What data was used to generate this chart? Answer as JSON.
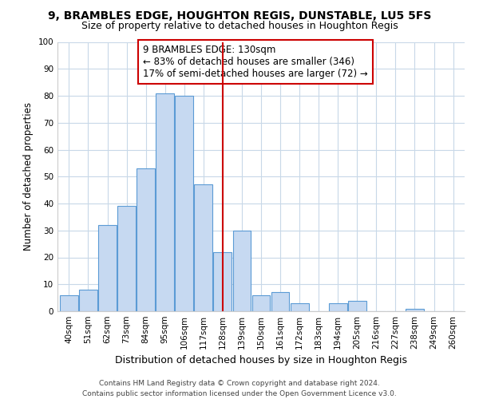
{
  "title": "9, BRAMBLES EDGE, HOUGHTON REGIS, DUNSTABLE, LU5 5FS",
  "subtitle": "Size of property relative to detached houses in Houghton Regis",
  "xlabel": "Distribution of detached houses by size in Houghton Regis",
  "ylabel": "Number of detached properties",
  "bar_labels": [
    "40sqm",
    "51sqm",
    "62sqm",
    "73sqm",
    "84sqm",
    "95sqm",
    "106sqm",
    "117sqm",
    "128sqm",
    "139sqm",
    "150sqm",
    "161sqm",
    "172sqm",
    "183sqm",
    "194sqm",
    "205sqm",
    "216sqm",
    "227sqm",
    "238sqm",
    "249sqm",
    "260sqm"
  ],
  "bar_values": [
    6,
    8,
    32,
    39,
    53,
    81,
    80,
    47,
    22,
    30,
    6,
    7,
    3,
    0,
    3,
    4,
    0,
    0,
    1,
    0,
    0
  ],
  "bar_color": "#c6d9f1",
  "bar_edge_color": "#5b9bd5",
  "vline_index": 8,
  "ylim": [
    0,
    100
  ],
  "yticks": [
    0,
    10,
    20,
    30,
    40,
    50,
    60,
    70,
    80,
    90,
    100
  ],
  "annotation_title": "9 BRAMBLES EDGE: 130sqm",
  "annotation_line1": "← 83% of detached houses are smaller (346)",
  "annotation_line2": "17% of semi-detached houses are larger (72) →",
  "vline_color": "#cc0000",
  "footer1": "Contains HM Land Registry data © Crown copyright and database right 2024.",
  "footer2": "Contains public sector information licensed under the Open Government Licence v3.0.",
  "background_color": "#ffffff",
  "grid_color": "#c8d8e8",
  "title_fontsize": 10,
  "subtitle_fontsize": 9,
  "xlabel_fontsize": 9,
  "ylabel_fontsize": 8.5,
  "annot_fontsize": 8.5,
  "footer_fontsize": 6.5,
  "tick_fontsize": 7.5
}
